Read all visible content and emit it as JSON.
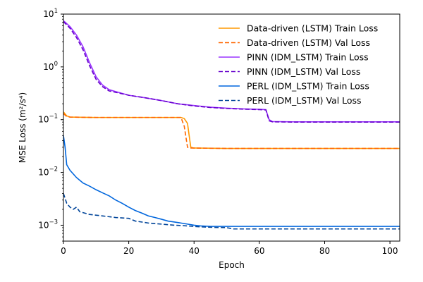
{
  "chart_data": {
    "type": "line",
    "xlabel": "Epoch",
    "ylabel": "MSE Loss (m²/s⁴)",
    "y_scale": "log",
    "xlim": [
      0,
      103
    ],
    "ylim": [
      0.0005,
      10
    ],
    "x_ticks": [
      0,
      20,
      40,
      60,
      80,
      100
    ],
    "y_ticks": [
      {
        "value": 0.001,
        "base": "10",
        "exp": "−3"
      },
      {
        "value": 0.01,
        "base": "10",
        "exp": "−2"
      },
      {
        "value": 0.1,
        "base": "10",
        "exp": "−1"
      },
      {
        "value": 1,
        "base": "10",
        "exp": "0"
      },
      {
        "value": 10,
        "base": "10",
        "exp": "1"
      }
    ],
    "grid": false,
    "legend_position": "top-right",
    "series": [
      {
        "name": "Data-driven (LSTM) Train Loss",
        "color": "#ff9900",
        "dash": "solid",
        "points": [
          [
            0,
            0.14
          ],
          [
            1,
            0.118
          ],
          [
            2,
            0.112
          ],
          [
            5,
            0.111
          ],
          [
            10,
            0.11
          ],
          [
            20,
            0.11
          ],
          [
            30,
            0.11
          ],
          [
            36,
            0.11
          ],
          [
            37,
            0.105
          ],
          [
            38,
            0.085
          ],
          [
            38.5,
            0.05
          ],
          [
            39,
            0.03
          ],
          [
            40,
            0.029
          ],
          [
            50,
            0.0285
          ],
          [
            60,
            0.0285
          ],
          [
            80,
            0.0285
          ],
          [
            103,
            0.0285
          ]
        ]
      },
      {
        "name": "Data-driven (LSTM) Val Loss",
        "color": "#ff6600",
        "dash": "dashed",
        "points": [
          [
            0,
            0.13
          ],
          [
            1,
            0.115
          ],
          [
            2,
            0.112
          ],
          [
            5,
            0.111
          ],
          [
            10,
            0.11
          ],
          [
            20,
            0.11
          ],
          [
            30,
            0.11
          ],
          [
            36,
            0.11
          ],
          [
            37,
            0.075
          ],
          [
            38,
            0.03
          ],
          [
            39,
            0.029
          ],
          [
            50,
            0.0285
          ],
          [
            60,
            0.0285
          ],
          [
            80,
            0.0285
          ],
          [
            103,
            0.0285
          ]
        ]
      },
      {
        "name": "PINN (IDM_LSTM) Train Loss",
        "color": "#9933ff",
        "dash": "solid",
        "points": [
          [
            0,
            7.5
          ],
          [
            2,
            5.8
          ],
          [
            4,
            4.0
          ],
          [
            6,
            2.4
          ],
          [
            8,
            1.2
          ],
          [
            10,
            0.65
          ],
          [
            12,
            0.45
          ],
          [
            14,
            0.37
          ],
          [
            16,
            0.34
          ],
          [
            20,
            0.29
          ],
          [
            25,
            0.26
          ],
          [
            30,
            0.23
          ],
          [
            35,
            0.2
          ],
          [
            40,
            0.185
          ],
          [
            45,
            0.172
          ],
          [
            50,
            0.165
          ],
          [
            55,
            0.16
          ],
          [
            60,
            0.157
          ],
          [
            62,
            0.155
          ],
          [
            63,
            0.1
          ],
          [
            64,
            0.092
          ],
          [
            70,
            0.091
          ],
          [
            80,
            0.091
          ],
          [
            103,
            0.091
          ]
        ]
      },
      {
        "name": "PINN (IDM_LSTM) Val Loss",
        "color": "#6600cc",
        "dash": "dashed",
        "points": [
          [
            0,
            7.2
          ],
          [
            2,
            5.4
          ],
          [
            4,
            3.6
          ],
          [
            6,
            2.1
          ],
          [
            8,
            1.05
          ],
          [
            10,
            0.58
          ],
          [
            12,
            0.42
          ],
          [
            14,
            0.35
          ],
          [
            16,
            0.33
          ],
          [
            20,
            0.29
          ],
          [
            25,
            0.26
          ],
          [
            30,
            0.23
          ],
          [
            35,
            0.2
          ],
          [
            40,
            0.182
          ],
          [
            45,
            0.17
          ],
          [
            50,
            0.163
          ],
          [
            55,
            0.158
          ],
          [
            60,
            0.155
          ],
          [
            62,
            0.153
          ],
          [
            63,
            0.095
          ],
          [
            64,
            0.091
          ],
          [
            70,
            0.09
          ],
          [
            80,
            0.09
          ],
          [
            103,
            0.09
          ]
        ]
      },
      {
        "name": "PERL (IDM_LSTM) Train Loss",
        "color": "#0066dd",
        "dash": "solid",
        "points": [
          [
            0,
            0.05
          ],
          [
            0.5,
            0.03
          ],
          [
            1,
            0.014
          ],
          [
            2,
            0.011
          ],
          [
            4,
            0.008
          ],
          [
            6,
            0.0063
          ],
          [
            8,
            0.0055
          ],
          [
            10,
            0.0047
          ],
          [
            12,
            0.0041
          ],
          [
            14,
            0.0036
          ],
          [
            16,
            0.003
          ],
          [
            18,
            0.0026
          ],
          [
            20,
            0.0022
          ],
          [
            22,
            0.0019
          ],
          [
            24,
            0.0017
          ],
          [
            26,
            0.0015
          ],
          [
            28,
            0.0014
          ],
          [
            30,
            0.0013
          ],
          [
            32,
            0.0012
          ],
          [
            34,
            0.00115
          ],
          [
            36,
            0.0011
          ],
          [
            38,
            0.00105
          ],
          [
            40,
            0.001
          ],
          [
            42,
            0.00097
          ],
          [
            45,
            0.00095
          ],
          [
            50,
            0.00095
          ],
          [
            60,
            0.00095
          ],
          [
            80,
            0.00095
          ],
          [
            103,
            0.00095
          ]
        ]
      },
      {
        "name": "PERL (IDM_LSTM) Val Loss",
        "color": "#004499",
        "dash": "dashed",
        "points": [
          [
            0,
            0.004
          ],
          [
            1,
            0.0026
          ],
          [
            2,
            0.0022
          ],
          [
            3,
            0.002
          ],
          [
            4,
            0.0022
          ],
          [
            5,
            0.0018
          ],
          [
            8,
            0.0016
          ],
          [
            12,
            0.0015
          ],
          [
            16,
            0.0014
          ],
          [
            20,
            0.00135
          ],
          [
            22,
            0.0012
          ],
          [
            26,
            0.0011
          ],
          [
            30,
            0.00105
          ],
          [
            34,
            0.001
          ],
          [
            38,
            0.00097
          ],
          [
            42,
            0.00093
          ],
          [
            46,
            0.00091
          ],
          [
            50,
            0.0009
          ],
          [
            52,
            0.00085
          ],
          [
            60,
            0.00085
          ],
          [
            80,
            0.00085
          ],
          [
            103,
            0.00085
          ]
        ]
      }
    ]
  }
}
